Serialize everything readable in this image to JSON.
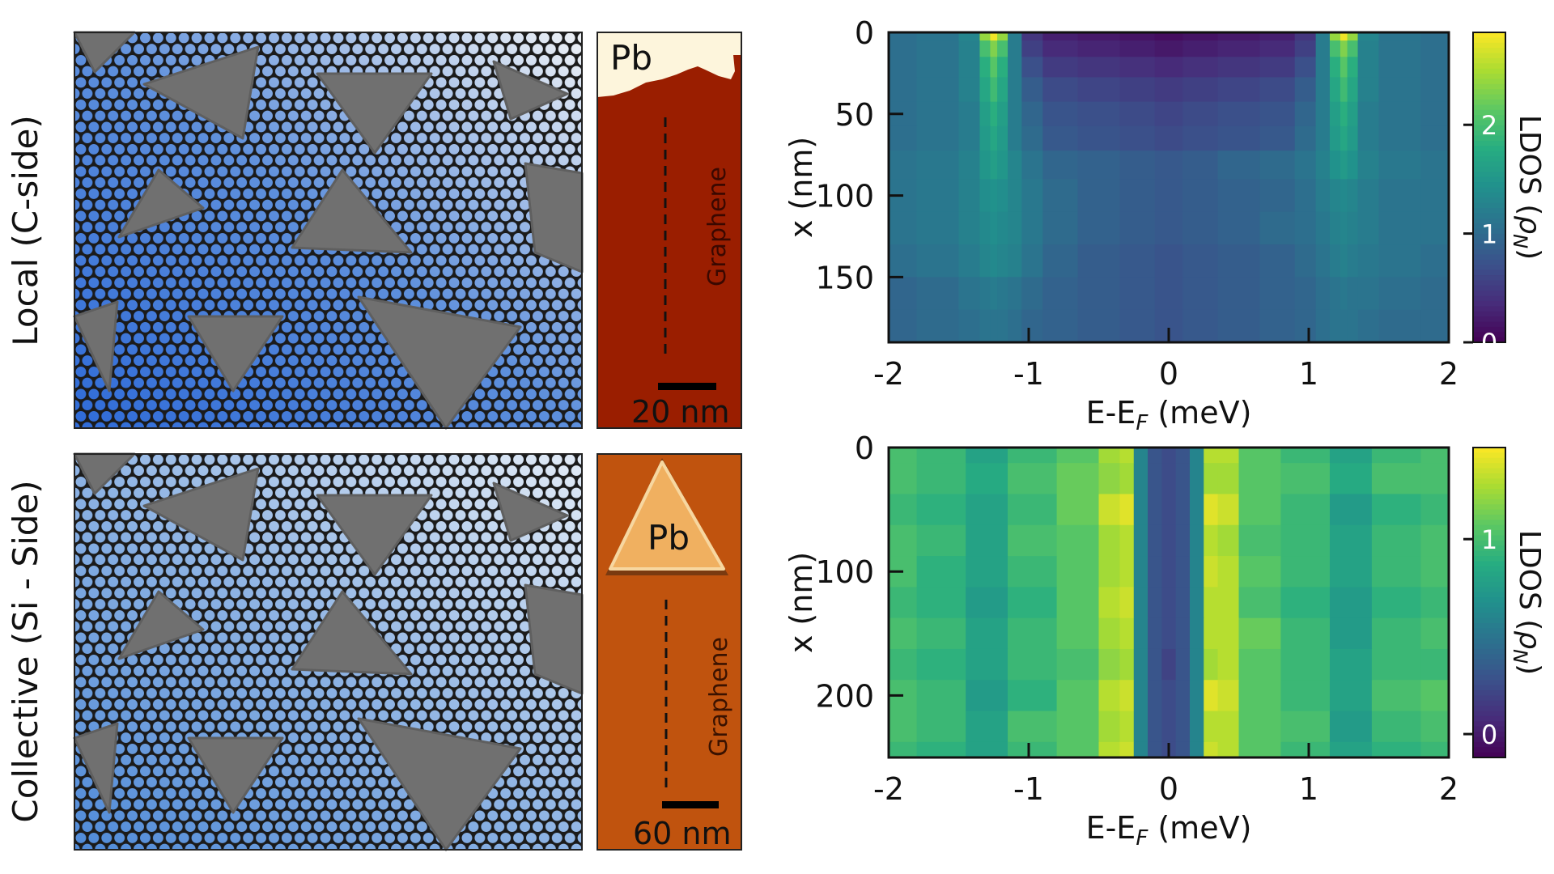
{
  "row_labels": {
    "top": "Local (C-side)",
    "bottom": "Collective (Si - Side)"
  },
  "stm_top": {
    "material_label": "Pb",
    "substrate_label": "Graphene",
    "scale_bar": "20 nm",
    "colors": {
      "background": "#9a1e00",
      "pb": "#fdf5dc"
    }
  },
  "stm_bottom": {
    "material_label": "Pb",
    "substrate_label": "Graphene",
    "scale_bar": "60 nm",
    "colors": {
      "background": "#c0530e",
      "pb": "#f0b060"
    }
  },
  "illustration_colors": {
    "particles": "#707070",
    "lattice": "#1b1b1b",
    "top_holes": [
      "#2f6bd8",
      "#eef1f5"
    ],
    "bottom_holes": [
      "#4f8ad8",
      "#e2ebf6"
    ]
  },
  "chart_data": [
    {
      "type": "heatmap",
      "xlabel": "E-E",
      "xlabel_sub": "F",
      "xlabel_unit": " (meV)",
      "ylabel": "x (nm)",
      "colorbar_label": "LDOS (",
      "colorbar_symbol": "ρ",
      "colorbar_sub": "N",
      "colorbar_close": ")",
      "colormap": "viridis",
      "xlim": [
        -2,
        2
      ],
      "ylim": [
        0,
        190
      ],
      "y_inverted": true,
      "clim": [
        0,
        2.85
      ],
      "xticks": [
        "-2",
        "-1",
        "0",
        "1",
        "2"
      ],
      "yticks": [
        "0",
        "50",
        "100",
        "150"
      ],
      "cticks": [
        "0",
        "1",
        "2"
      ],
      "energies": [
        -2,
        -1.6,
        -1.4,
        -1.3,
        -1.25,
        -1.2,
        -1.1,
        -1.0,
        -0.8,
        -0.5,
        -0.2,
        0,
        0.2,
        0.5,
        0.8,
        1.0,
        1.1,
        1.2,
        1.25,
        1.3,
        1.4,
        1.6,
        2
      ],
      "positions": [
        0,
        10,
        20,
        35,
        50,
        65,
        80,
        100,
        120,
        140,
        160,
        180
      ],
      "values": [
        [
          1.05,
          1.1,
          1.3,
          2.4,
          2.8,
          2.4,
          1.2,
          0.45,
          0.25,
          0.2,
          0.15,
          0.1,
          0.15,
          0.2,
          0.25,
          0.45,
          1.2,
          2.4,
          2.8,
          2.4,
          1.3,
          1.1,
          1.05
        ],
        [
          1.05,
          1.1,
          1.25,
          2.0,
          2.3,
          2.0,
          1.2,
          0.55,
          0.35,
          0.3,
          0.25,
          0.2,
          0.25,
          0.3,
          0.35,
          0.55,
          1.2,
          2.0,
          2.3,
          2.0,
          1.25,
          1.1,
          1.05
        ],
        [
          1.05,
          1.1,
          1.25,
          1.8,
          2.1,
          1.8,
          1.2,
          0.7,
          0.5,
          0.45,
          0.4,
          0.35,
          0.4,
          0.45,
          0.5,
          0.7,
          1.2,
          1.8,
          2.1,
          1.8,
          1.25,
          1.1,
          1.05
        ],
        [
          1.05,
          1.1,
          1.25,
          1.7,
          1.95,
          1.7,
          1.2,
          0.85,
          0.65,
          0.6,
          0.55,
          0.5,
          0.55,
          0.6,
          0.65,
          0.85,
          1.2,
          1.7,
          1.95,
          1.7,
          1.25,
          1.1,
          1.05
        ],
        [
          1.05,
          1.1,
          1.2,
          1.6,
          1.8,
          1.6,
          1.2,
          0.95,
          0.75,
          0.7,
          0.65,
          0.6,
          0.65,
          0.7,
          0.75,
          0.95,
          1.2,
          1.6,
          1.8,
          1.6,
          1.2,
          1.1,
          1.05
        ],
        [
          1.05,
          1.1,
          1.2,
          1.55,
          1.7,
          1.55,
          1.2,
          1.0,
          0.8,
          0.75,
          0.7,
          0.65,
          0.7,
          0.75,
          0.8,
          1.0,
          1.2,
          1.55,
          1.7,
          1.55,
          1.2,
          1.1,
          1.05
        ],
        [
          1.1,
          1.15,
          1.25,
          1.5,
          1.6,
          1.5,
          1.3,
          1.1,
          0.95,
          0.9,
          0.85,
          0.8,
          0.85,
          0.95,
          1.0,
          1.1,
          1.25,
          1.45,
          1.55,
          1.45,
          1.25,
          1.15,
          1.1
        ],
        [
          1.1,
          1.15,
          1.25,
          1.4,
          1.45,
          1.4,
          1.3,
          1.15,
          1.0,
          0.9,
          0.85,
          0.8,
          0.85,
          0.9,
          0.95,
          1.05,
          1.2,
          1.3,
          1.35,
          1.3,
          1.2,
          1.1,
          1.1
        ],
        [
          1.1,
          1.15,
          1.25,
          1.35,
          1.4,
          1.35,
          1.3,
          1.15,
          1.0,
          0.9,
          0.85,
          0.8,
          0.85,
          0.9,
          1.0,
          1.05,
          1.15,
          1.25,
          1.3,
          1.25,
          1.2,
          1.1,
          1.1
        ],
        [
          1.05,
          1.1,
          1.2,
          1.3,
          1.35,
          1.3,
          1.25,
          1.1,
          0.95,
          0.85,
          0.8,
          0.75,
          0.8,
          0.85,
          0.9,
          1.0,
          1.1,
          1.2,
          1.25,
          1.2,
          1.15,
          1.1,
          1.05
        ],
        [
          0.95,
          1.0,
          1.1,
          1.15,
          1.2,
          1.15,
          1.1,
          1.0,
          0.9,
          0.85,
          0.8,
          0.75,
          0.8,
          0.85,
          0.9,
          0.95,
          1.05,
          1.1,
          1.15,
          1.1,
          1.1,
          1.05,
          1.0
        ],
        [
          0.95,
          1.0,
          1.05,
          1.1,
          1.1,
          1.1,
          1.05,
          0.95,
          0.9,
          0.85,
          0.8,
          0.75,
          0.8,
          0.85,
          0.9,
          0.95,
          1.05,
          1.1,
          1.1,
          1.1,
          1.05,
          1.0,
          1.0
        ]
      ]
    },
    {
      "type": "heatmap",
      "xlabel": "E-E",
      "xlabel_sub": "F",
      "xlabel_unit": " (meV)",
      "ylabel": "x (nm)",
      "colorbar_label": "LDOS (",
      "colorbar_symbol": "ρ",
      "colorbar_sub": "N",
      "colorbar_close": ")",
      "colormap": "viridis",
      "xlim": [
        -2,
        2
      ],
      "ylim": [
        0,
        250
      ],
      "y_inverted": true,
      "clim": [
        -0.12,
        1.47
      ],
      "xticks": [
        "-2",
        "-1",
        "0",
        "1",
        "2"
      ],
      "yticks": [
        "0",
        "100",
        "200"
      ],
      "cticks": [
        "0",
        "1"
      ],
      "energies": [
        -2,
        -1.6,
        -1.3,
        -1.0,
        -0.6,
        -0.4,
        -0.3,
        -0.2,
        -0.1,
        0,
        0.1,
        0.2,
        0.3,
        0.4,
        0.6,
        1.0,
        1.3,
        1.6,
        2
      ],
      "positions": [
        0,
        25,
        50,
        75,
        100,
        125,
        150,
        175,
        200,
        225,
        250
      ],
      "values": [
        [
          1.0,
          0.95,
          0.8,
          0.95,
          1.05,
          1.25,
          1.3,
          0.6,
          0.3,
          0.25,
          0.3,
          0.6,
          1.3,
          1.3,
          1.05,
          0.95,
          0.8,
          0.95,
          1.0
        ],
        [
          1.0,
          0.95,
          0.85,
          1.0,
          1.1,
          1.2,
          1.25,
          0.6,
          0.3,
          0.25,
          0.3,
          0.6,
          1.25,
          1.25,
          1.05,
          1.0,
          0.85,
          1.0,
          1.0
        ],
        [
          0.95,
          0.9,
          0.8,
          0.95,
          1.1,
          1.35,
          1.4,
          0.6,
          0.3,
          0.25,
          0.3,
          0.6,
          1.4,
          1.35,
          1.05,
          0.95,
          0.75,
          0.9,
          0.95
        ],
        [
          1.0,
          0.95,
          0.8,
          1.0,
          1.05,
          1.25,
          1.3,
          0.6,
          0.3,
          0.25,
          0.3,
          0.6,
          1.3,
          1.25,
          1.0,
          0.95,
          0.8,
          0.95,
          1.0
        ],
        [
          1.0,
          0.9,
          0.8,
          0.95,
          1.05,
          1.25,
          1.3,
          0.6,
          0.3,
          0.25,
          0.3,
          0.6,
          1.35,
          1.3,
          1.05,
          0.95,
          0.8,
          0.95,
          1.0
        ],
        [
          0.95,
          0.9,
          0.75,
          0.9,
          1.05,
          1.3,
          1.35,
          0.6,
          0.3,
          0.25,
          0.3,
          0.6,
          1.3,
          1.3,
          1.0,
          0.9,
          0.75,
          0.9,
          0.95
        ],
        [
          1.0,
          0.95,
          0.8,
          0.95,
          1.05,
          1.25,
          1.3,
          0.6,
          0.3,
          0.25,
          0.3,
          0.6,
          1.3,
          1.3,
          1.1,
          0.95,
          0.75,
          0.95,
          1.0
        ],
        [
          0.95,
          0.9,
          0.8,
          0.95,
          1.0,
          1.2,
          1.25,
          0.6,
          0.3,
          0.2,
          0.3,
          0.6,
          1.25,
          1.3,
          1.05,
          0.95,
          0.8,
          0.95,
          0.95
        ],
        [
          1.0,
          0.95,
          0.75,
          0.9,
          1.05,
          1.3,
          1.35,
          0.6,
          0.3,
          0.25,
          0.3,
          0.6,
          1.4,
          1.35,
          1.05,
          0.95,
          0.8,
          1.0,
          1.05
        ],
        [
          1.0,
          0.95,
          0.8,
          1.0,
          1.05,
          1.25,
          1.3,
          0.6,
          0.3,
          0.25,
          0.3,
          0.6,
          1.3,
          1.3,
          1.05,
          1.0,
          0.75,
          0.95,
          1.0
        ],
        [
          0.95,
          0.9,
          0.8,
          0.95,
          1.05,
          1.3,
          1.35,
          0.6,
          0.3,
          0.25,
          0.3,
          0.6,
          1.35,
          1.3,
          1.05,
          0.95,
          0.8,
          0.9,
          0.95
        ]
      ]
    }
  ]
}
